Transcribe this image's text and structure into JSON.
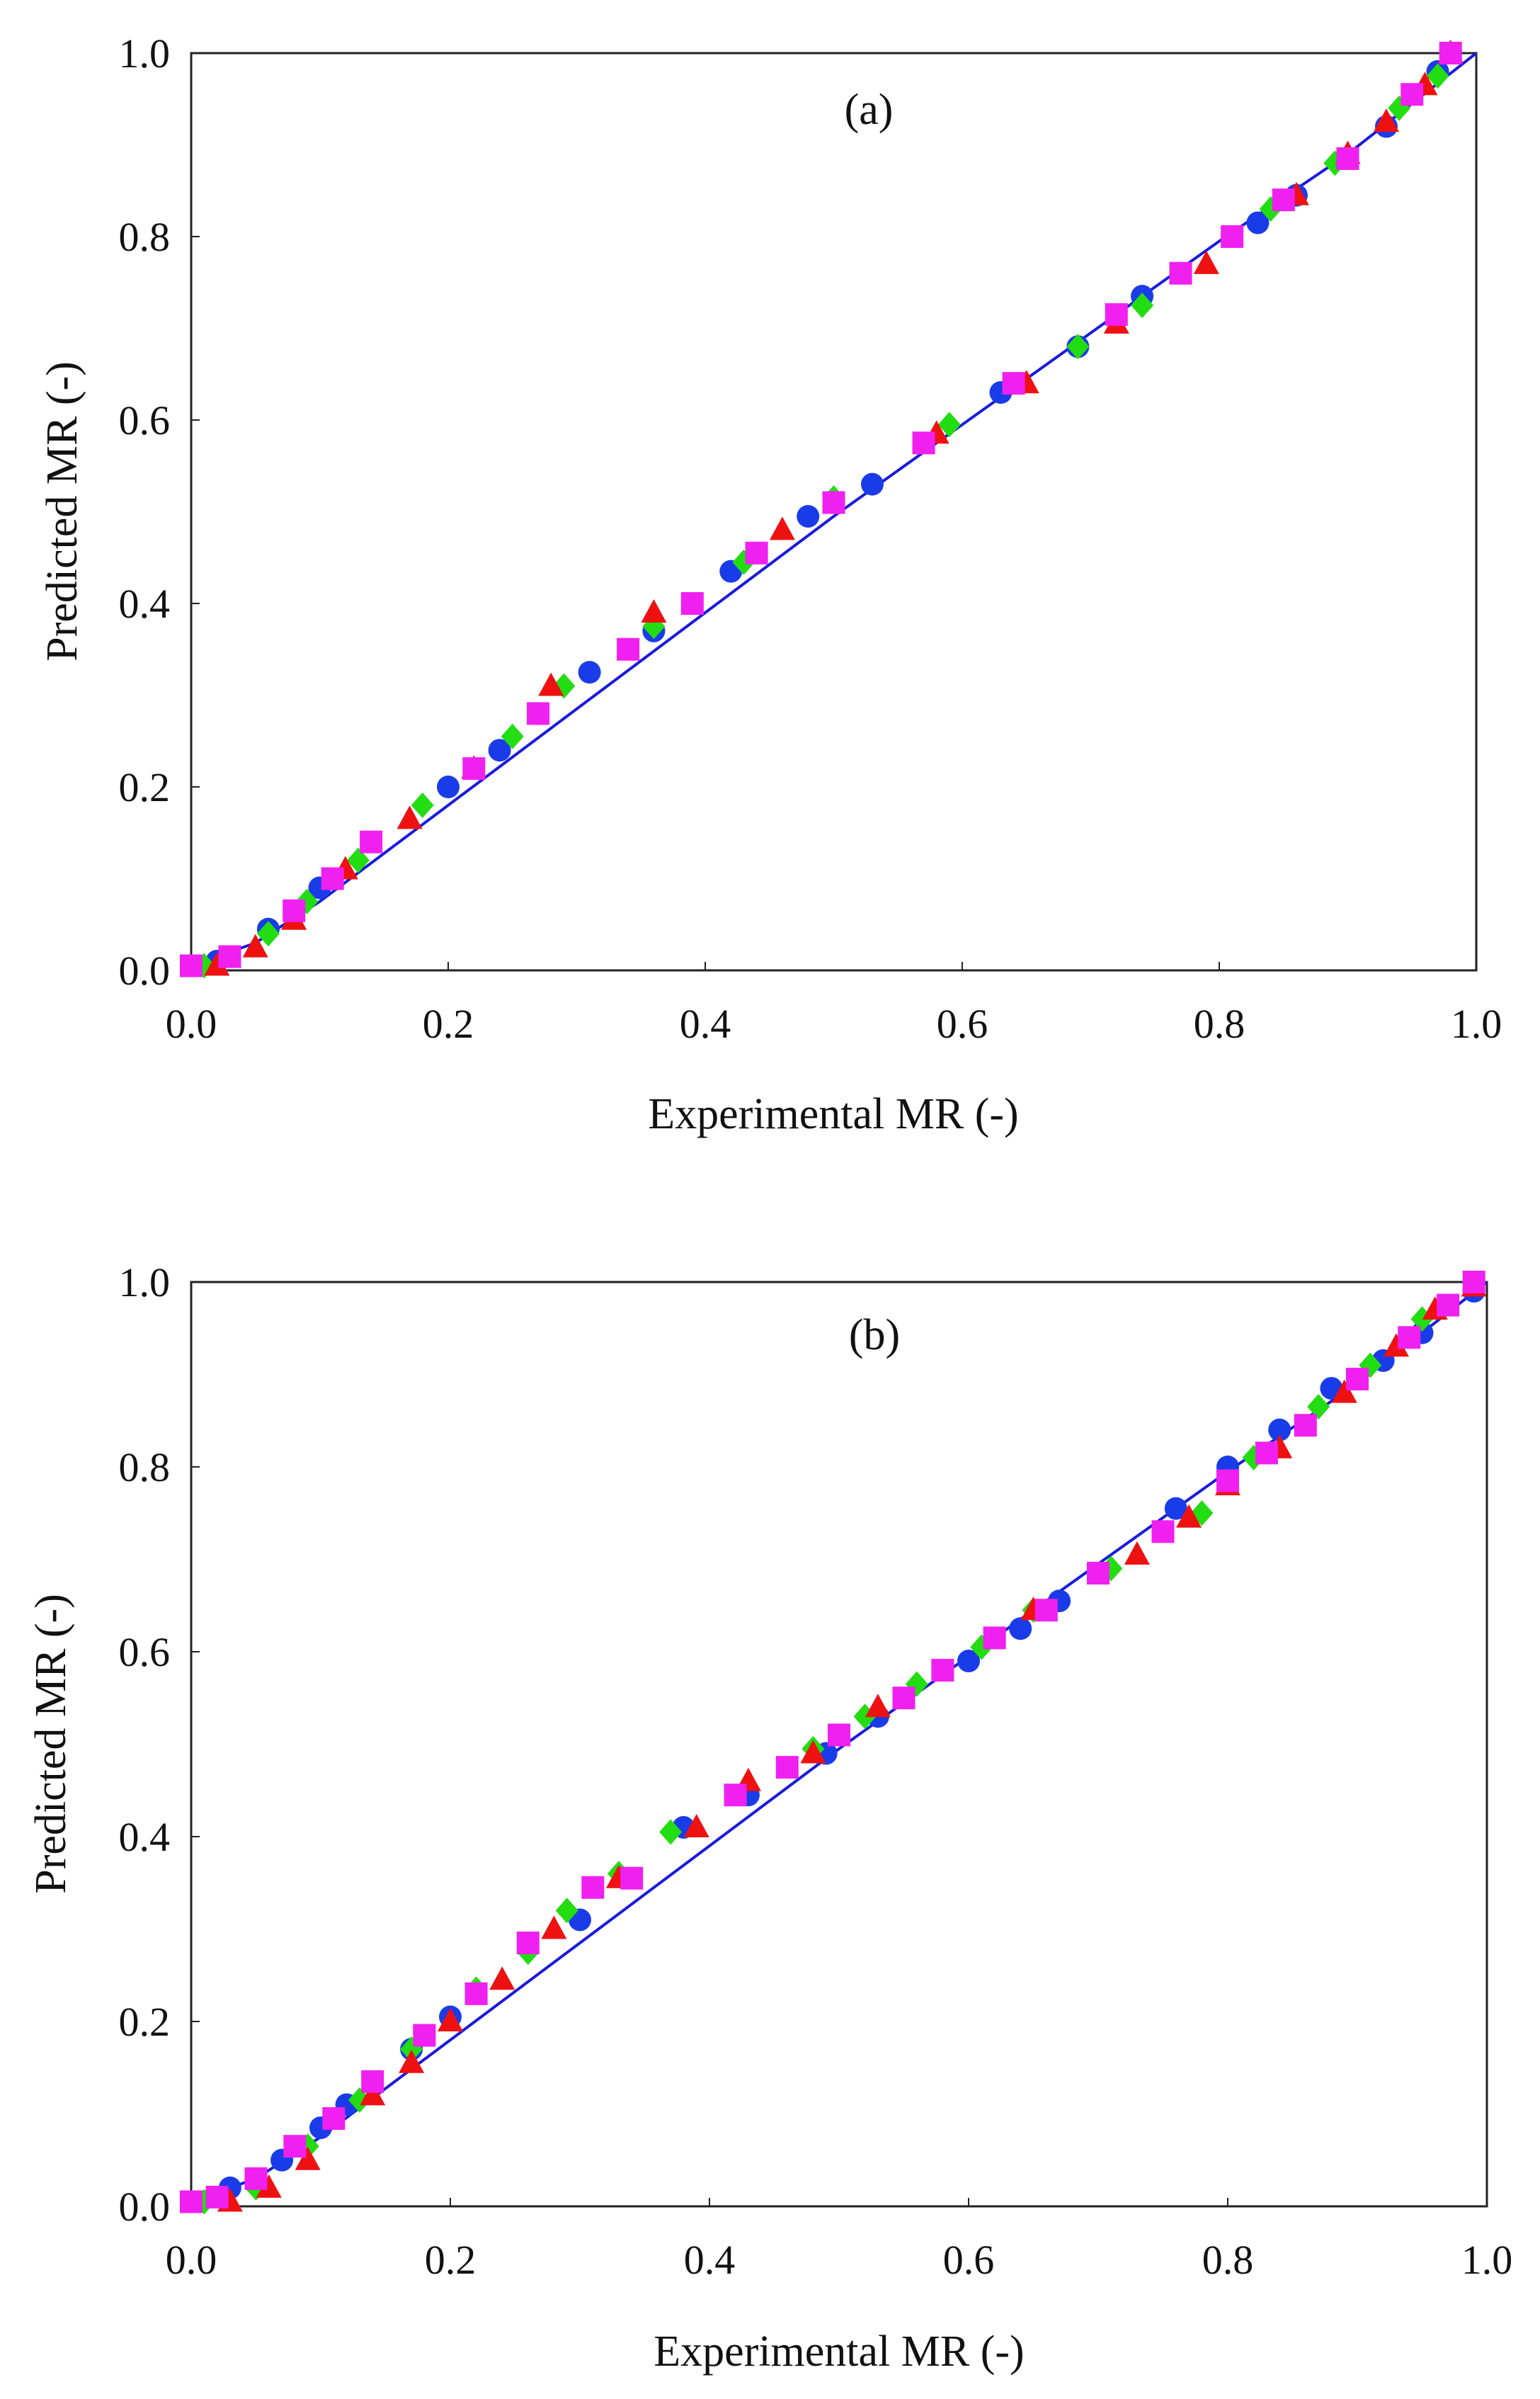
{
  "chart_data": [
    {
      "type": "scatter",
      "panel_label": "(a)",
      "xlabel": "Experimental MR (-)",
      "ylabel": "Predicted MR (-)",
      "xlim": [
        0,
        1
      ],
      "ylim": [
        0,
        1
      ],
      "xticks": [
        "0.0",
        "0.2",
        "0.4",
        "0.6",
        "0.8",
        "1.0"
      ],
      "yticks": [
        "0.0",
        "0.2",
        "0.4",
        "0.6",
        "0.8",
        "1.0"
      ],
      "grid": false,
      "fit_line": {
        "name": "fit",
        "color": "#1a1adc",
        "x": [
          0,
          0.05,
          0.1,
          0.2,
          0.3,
          0.4,
          0.5,
          0.6,
          0.7,
          0.8,
          0.9,
          1.0
        ],
        "y": [
          0.005,
          0.03,
          0.075,
          0.18,
          0.285,
          0.39,
          0.495,
          0.595,
          0.695,
          0.795,
          0.89,
          1.0
        ]
      },
      "series": [
        {
          "name": "blue circles",
          "marker": "circle",
          "color": "#1a3ce8",
          "x": [
            0.0,
            0.02,
            0.06,
            0.1,
            0.2,
            0.24,
            0.27,
            0.31,
            0.36,
            0.42,
            0.48,
            0.53,
            0.63,
            0.69,
            0.74,
            0.83,
            0.86,
            0.93,
            0.97
          ],
          "y": [
            0.005,
            0.01,
            0.045,
            0.09,
            0.2,
            0.24,
            0.28,
            0.325,
            0.37,
            0.435,
            0.495,
            0.53,
            0.63,
            0.68,
            0.735,
            0.815,
            0.845,
            0.92,
            0.98
          ]
        },
        {
          "name": "green diamonds",
          "marker": "diamond",
          "color": "#22dd11",
          "x": [
            0.01,
            0.06,
            0.09,
            0.13,
            0.18,
            0.25,
            0.29,
            0.36,
            0.43,
            0.5,
            0.59,
            0.69,
            0.74,
            0.84,
            0.89,
            0.94,
            0.97
          ],
          "y": [
            0.005,
            0.04,
            0.075,
            0.12,
            0.18,
            0.255,
            0.31,
            0.375,
            0.445,
            0.515,
            0.595,
            0.68,
            0.725,
            0.83,
            0.88,
            0.94,
            0.975
          ]
        },
        {
          "name": "red triangles",
          "marker": "triangle",
          "color": "#ee1111",
          "x": [
            0.02,
            0.05,
            0.08,
            0.12,
            0.17,
            0.22,
            0.28,
            0.36,
            0.46,
            0.58,
            0.65,
            0.72,
            0.79,
            0.86,
            0.9,
            0.93,
            0.96,
            0.98
          ],
          "y": [
            0.005,
            0.025,
            0.055,
            0.11,
            0.165,
            0.22,
            0.31,
            0.39,
            0.48,
            0.585,
            0.64,
            0.705,
            0.77,
            0.845,
            0.89,
            0.925,
            0.965,
            1.0
          ]
        },
        {
          "name": "magenta squares",
          "marker": "square",
          "color": "#f020f0",
          "x": [
            0.0,
            0.03,
            0.08,
            0.11,
            0.14,
            0.22,
            0.27,
            0.34,
            0.39,
            0.44,
            0.5,
            0.57,
            0.64,
            0.72,
            0.77,
            0.81,
            0.85,
            0.9,
            0.95,
            0.98
          ],
          "y": [
            0.005,
            0.015,
            0.065,
            0.1,
            0.14,
            0.22,
            0.28,
            0.35,
            0.4,
            0.455,
            0.51,
            0.575,
            0.64,
            0.715,
            0.76,
            0.8,
            0.84,
            0.885,
            0.955,
            1.0
          ]
        }
      ]
    },
    {
      "type": "scatter",
      "panel_label": "(b)",
      "xlabel": "Experimental MR (-)",
      "ylabel": "Predicted MR (-)",
      "xlim": [
        0,
        1
      ],
      "ylim": [
        0,
        1
      ],
      "xticks": [
        "0.0",
        "0.2",
        "0.4",
        "0.6",
        "0.8",
        "1.0"
      ],
      "yticks": [
        "0.0",
        "0.2",
        "0.4",
        "0.6",
        "0.8",
        "1.0"
      ],
      "grid": false,
      "fit_line": {
        "name": "fit",
        "color": "#1a1adc",
        "x": [
          0,
          0.05,
          0.1,
          0.2,
          0.3,
          0.4,
          0.5,
          0.6,
          0.7,
          0.8,
          0.9,
          1.0
        ],
        "y": [
          0.005,
          0.03,
          0.075,
          0.18,
          0.285,
          0.39,
          0.495,
          0.595,
          0.695,
          0.795,
          0.89,
          1.0
        ]
      },
      "series": [
        {
          "name": "blue circles",
          "marker": "circle",
          "color": "#1a3ce8",
          "x": [
            0.0,
            0.03,
            0.07,
            0.1,
            0.12,
            0.17,
            0.2,
            0.3,
            0.38,
            0.43,
            0.49,
            0.53,
            0.6,
            0.64,
            0.67,
            0.7,
            0.76,
            0.8,
            0.84,
            0.88,
            0.92,
            0.95,
            0.99
          ],
          "y": [
            0.005,
            0.02,
            0.05,
            0.085,
            0.11,
            0.17,
            0.205,
            0.31,
            0.41,
            0.445,
            0.49,
            0.53,
            0.59,
            0.625,
            0.655,
            0.685,
            0.755,
            0.8,
            0.84,
            0.885,
            0.915,
            0.945,
            0.99
          ]
        },
        {
          "name": "green diamonds",
          "marker": "diamond",
          "color": "#22dd11",
          "x": [
            0.01,
            0.05,
            0.09,
            0.13,
            0.17,
            0.22,
            0.26,
            0.29,
            0.33,
            0.37,
            0.48,
            0.52,
            0.56,
            0.61,
            0.65,
            0.71,
            0.78,
            0.82,
            0.87,
            0.91,
            0.95
          ],
          "y": [
            0.005,
            0.02,
            0.065,
            0.115,
            0.17,
            0.235,
            0.275,
            0.32,
            0.36,
            0.405,
            0.495,
            0.53,
            0.565,
            0.605,
            0.645,
            0.69,
            0.75,
            0.81,
            0.865,
            0.91,
            0.96
          ]
        },
        {
          "name": "red triangles",
          "marker": "triangle",
          "color": "#ee1111",
          "x": [
            0.03,
            0.06,
            0.09,
            0.14,
            0.17,
            0.2,
            0.24,
            0.28,
            0.33,
            0.39,
            0.43,
            0.48,
            0.53,
            0.65,
            0.73,
            0.77,
            0.8,
            0.84,
            0.89,
            0.93,
            0.96,
            0.99
          ],
          "y": [
            0.005,
            0.02,
            0.05,
            0.12,
            0.155,
            0.2,
            0.245,
            0.3,
            0.355,
            0.41,
            0.46,
            0.49,
            0.54,
            0.645,
            0.705,
            0.745,
            0.78,
            0.82,
            0.88,
            0.93,
            0.97,
            0.995
          ]
        },
        {
          "name": "magenta squares",
          "marker": "square",
          "color": "#f020f0",
          "x": [
            0.0,
            0.02,
            0.05,
            0.08,
            0.11,
            0.14,
            0.18,
            0.22,
            0.26,
            0.31,
            0.34,
            0.42,
            0.46,
            0.5,
            0.55,
            0.58,
            0.62,
            0.66,
            0.7,
            0.75,
            0.8,
            0.83,
            0.86,
            0.9,
            0.94,
            0.97,
            0.99
          ],
          "y": [
            0.005,
            0.01,
            0.03,
            0.065,
            0.095,
            0.135,
            0.185,
            0.23,
            0.285,
            0.345,
            0.355,
            0.445,
            0.475,
            0.51,
            0.55,
            0.58,
            0.615,
            0.645,
            0.685,
            0.73,
            0.785,
            0.815,
            0.845,
            0.895,
            0.94,
            0.975,
            1.0
          ]
        }
      ]
    }
  ]
}
